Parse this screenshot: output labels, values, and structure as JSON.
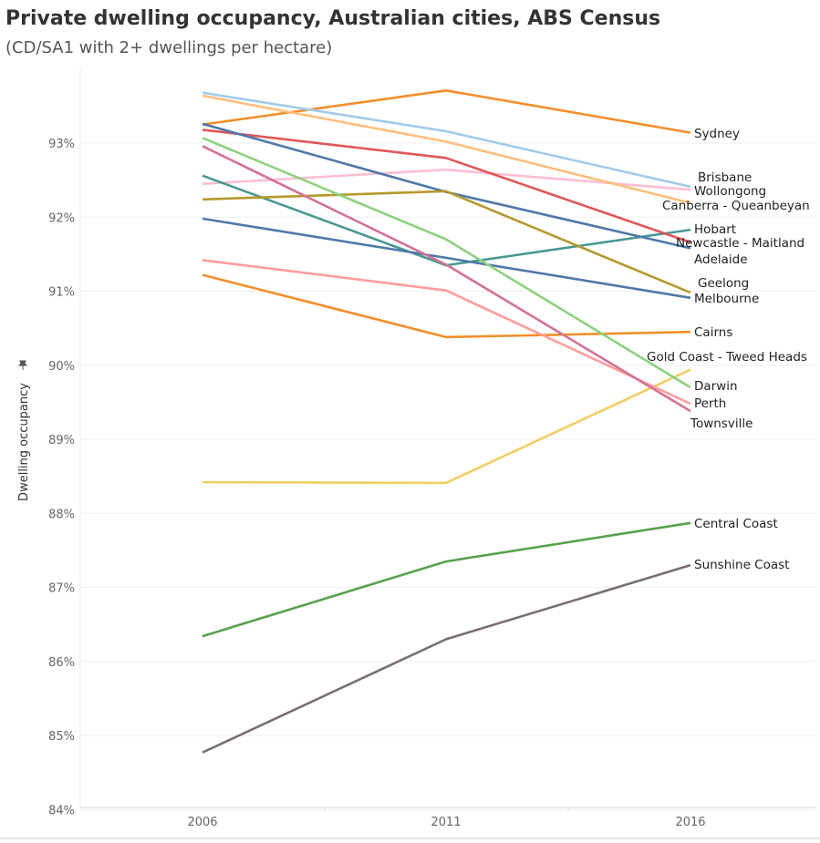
{
  "title": "Private dwelling occupancy, Australian cities, ABS Census",
  "subtitle": "(CD/SA1 with 2+ dwellings per hectare)",
  "chart_data": {
    "type": "line",
    "title": "Private dwelling occupancy, Australian cities, ABS Census",
    "subtitle": "(CD/SA1 with 2+ dwellings per hectare)",
    "xlabel": "",
    "ylabel": "Dwelling occupancy",
    "ylabel_icon": "pin-icon",
    "x": [
      "2006",
      "2011",
      "2016"
    ],
    "ylim": [
      83.9,
      94.5
    ],
    "yticks": [
      84,
      85,
      86,
      87,
      88,
      89,
      90,
      91,
      92,
      93
    ],
    "ytick_labels": [
      "84%",
      "85%",
      "86%",
      "87%",
      "88%",
      "89%",
      "90%",
      "91%",
      "92%",
      "93%"
    ],
    "grid": true,
    "legend": "direct-labels-right",
    "series": [
      {
        "name": "Sydney",
        "color": "#f28e2b",
        "values": [
          93.25,
          93.71,
          93.14
        ]
      },
      {
        "name": "Brisbane",
        "color": "#a0cbe8",
        "values": [
          93.68,
          93.16,
          92.41
        ]
      },
      {
        "name": "Wollongong",
        "color": "#fabfd2",
        "values": [
          92.45,
          92.64,
          92.37
        ]
      },
      {
        "name": "Canberra - Queanbeyan",
        "color": "#ffbe7d",
        "values": [
          93.64,
          93.02,
          92.19
        ]
      },
      {
        "name": "Hobart",
        "color": "#499894",
        "values": [
          92.56,
          91.35,
          91.83
        ]
      },
      {
        "name": "Newcastle - Maitland",
        "color": "#e15759",
        "values": [
          93.18,
          92.8,
          91.66
        ]
      },
      {
        "name": "Adelaide",
        "color": "#4e79a7",
        "values": [
          93.26,
          92.34,
          91.58
        ]
      },
      {
        "name": "Geelong",
        "color": "#b6992d",
        "values": [
          92.24,
          92.35,
          90.98
        ]
      },
      {
        "name": "Melbourne",
        "color": "#4e79a7",
        "values": [
          91.98,
          91.45,
          90.91
        ]
      },
      {
        "name": "Cairns",
        "color": "#f28e2b",
        "values": [
          91.22,
          90.38,
          90.45
        ]
      },
      {
        "name": "Gold Coast - Tweed Heads",
        "color": "#f1ce63",
        "values": [
          88.42,
          88.41,
          89.94
        ]
      },
      {
        "name": "Darwin",
        "color": "#8cd17d",
        "values": [
          93.07,
          91.7,
          89.7
        ]
      },
      {
        "name": "Perth",
        "color": "#ff9d9a",
        "values": [
          91.42,
          91.01,
          89.48
        ]
      },
      {
        "name": "Townsville",
        "color": "#d37295",
        "values": [
          92.96,
          91.36,
          89.38
        ]
      },
      {
        "name": "Central Coast",
        "color": "#59a14f",
        "values": [
          86.34,
          87.35,
          87.87
        ]
      },
      {
        "name": "Sunshine Coast",
        "color": "#79706e",
        "values": [
          84.77,
          86.3,
          87.3
        ]
      }
    ]
  }
}
